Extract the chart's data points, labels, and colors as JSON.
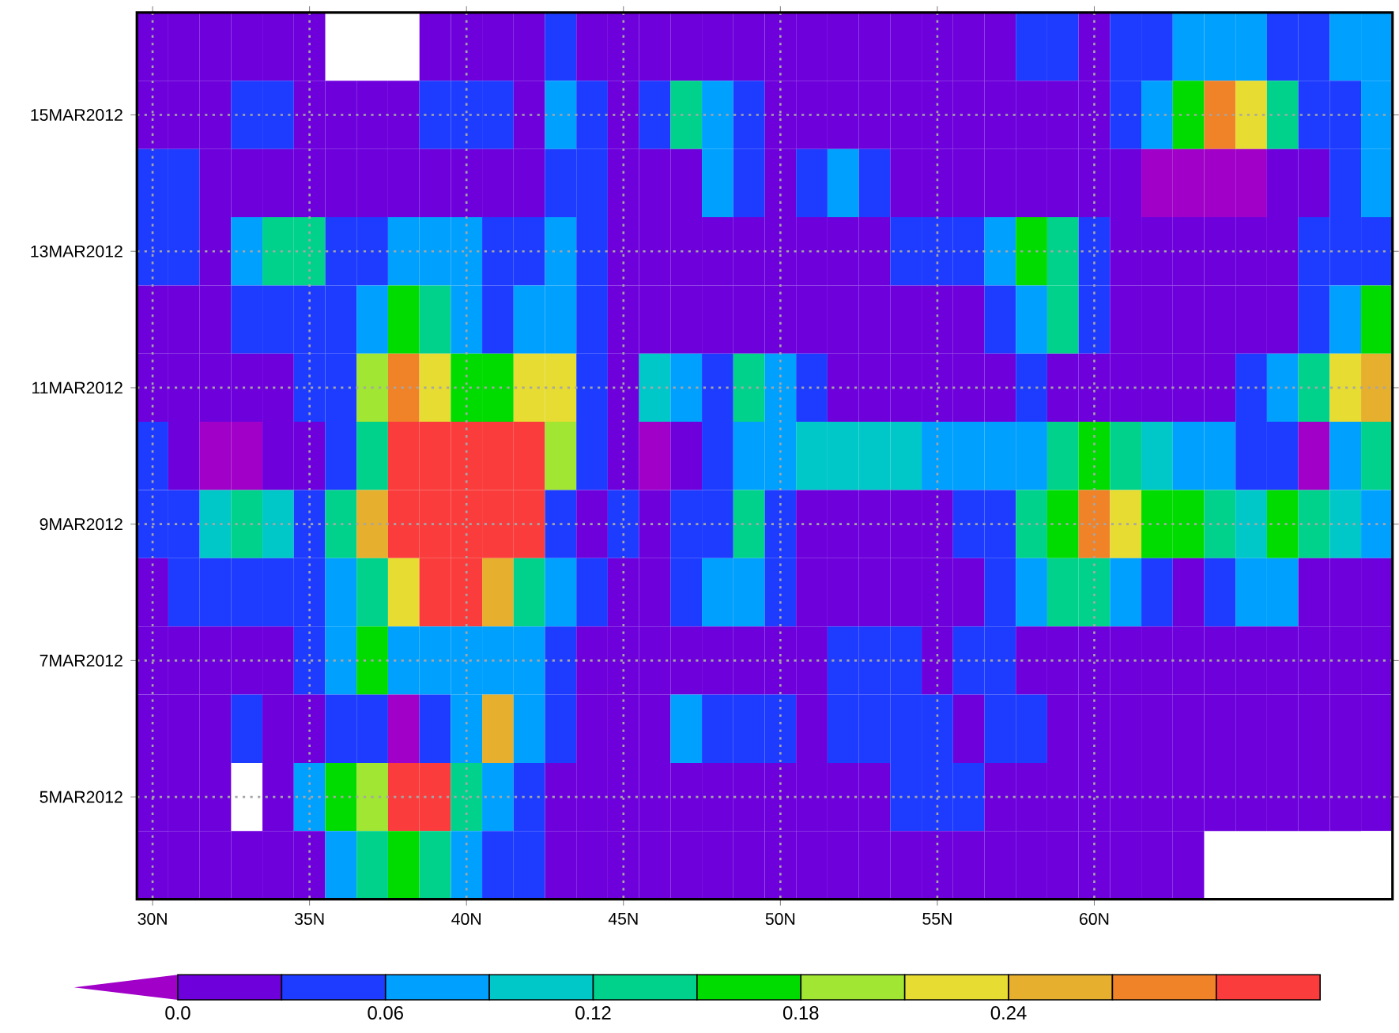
{
  "chart_data": {
    "type": "heatmap",
    "categories": [
      "30N",
      null,
      null,
      null,
      null,
      "35N",
      null,
      null,
      null,
      null,
      "40N",
      null,
      null,
      null,
      null,
      "45N",
      null,
      null,
      null,
      null,
      "50N",
      null,
      null,
      null,
      null,
      "55N",
      null,
      null,
      null,
      null,
      "60N",
      null,
      null,
      null,
      null,
      null,
      null,
      null,
      null,
      null
    ],
    "y_categories": [
      null,
      "15MAR2012",
      null,
      "13MAR2012",
      null,
      "11MAR2012",
      null,
      "9MAR2012",
      null,
      "7MAR2012",
      null,
      "5MAR2012",
      null
    ],
    "cells": [
      [
        0.015,
        0.015,
        0.015,
        0.015,
        0.015,
        0.015,
        null,
        null,
        null,
        0.015,
        0.015,
        0.015,
        0.015,
        0.045,
        0.015,
        0.015,
        0.015,
        0.015,
        0.015,
        0.015,
        0.015,
        0.015,
        0.015,
        0.015,
        0.015,
        0.015,
        0.015,
        0.015,
        0.045,
        0.045,
        0.015,
        0.045,
        0.045,
        0.075,
        0.075,
        0.075,
        0.045,
        0.045,
        0.075,
        0.075
      ],
      [
        0.015,
        0.015,
        0.015,
        0.045,
        0.045,
        0.015,
        0.015,
        0.015,
        0.015,
        0.045,
        0.045,
        0.045,
        0.015,
        0.075,
        0.045,
        0.015,
        0.045,
        0.135,
        0.075,
        0.045,
        0.015,
        0.015,
        0.015,
        0.015,
        0.015,
        0.015,
        0.015,
        0.015,
        0.015,
        0.015,
        0.015,
        0.045,
        0.075,
        0.165,
        0.285,
        0.225,
        0.135,
        0.045,
        0.045,
        0.075
      ],
      [
        0.045,
        0.045,
        0.015,
        0.015,
        0.015,
        0.015,
        0.015,
        0.015,
        0.015,
        0.015,
        0.015,
        0.015,
        0.015,
        0.045,
        0.045,
        0.015,
        0.015,
        0.015,
        0.075,
        0.045,
        0.015,
        0.045,
        0.075,
        0.045,
        0.015,
        0.015,
        0.015,
        0.015,
        0.015,
        0.015,
        0.015,
        0.015,
        -0.015,
        -0.015,
        -0.015,
        -0.015,
        0.015,
        0.015,
        0.045,
        0.075
      ],
      [
        0.045,
        0.045,
        0.015,
        0.075,
        0.135,
        0.135,
        0.045,
        0.045,
        0.075,
        0.075,
        0.075,
        0.045,
        0.045,
        0.075,
        0.045,
        0.015,
        0.015,
        0.015,
        0.015,
        0.015,
        0.015,
        0.015,
        0.015,
        0.015,
        0.045,
        0.045,
        0.045,
        0.075,
        0.165,
        0.135,
        0.045,
        0.015,
        0.015,
        0.015,
        0.015,
        0.015,
        0.015,
        0.045,
        0.045,
        0.045
      ],
      [
        0.015,
        0.015,
        0.015,
        0.045,
        0.045,
        0.045,
        0.045,
        0.075,
        0.165,
        0.135,
        0.075,
        0.045,
        0.075,
        0.075,
        0.045,
        0.015,
        0.015,
        0.015,
        0.015,
        0.015,
        0.015,
        0.015,
        0.015,
        0.015,
        0.015,
        0.015,
        0.015,
        0.045,
        0.075,
        0.135,
        0.045,
        0.015,
        0.015,
        0.015,
        0.015,
        0.015,
        0.015,
        0.045,
        0.075,
        0.165
      ],
      [
        0.015,
        0.015,
        0.015,
        0.015,
        0.015,
        0.045,
        0.045,
        0.195,
        0.285,
        0.225,
        0.165,
        0.165,
        0.225,
        0.225,
        0.045,
        0.015,
        0.105,
        0.075,
        0.045,
        0.135,
        0.075,
        0.045,
        0.015,
        0.015,
        0.015,
        0.015,
        0.015,
        0.015,
        0.045,
        0.015,
        0.015,
        0.015,
        0.015,
        0.015,
        0.015,
        0.045,
        0.075,
        0.135,
        0.225,
        0.255
      ],
      [
        0.045,
        0.015,
        -0.015,
        -0.015,
        0.015,
        0.015,
        0.045,
        0.135,
        0.315,
        0.315,
        0.315,
        0.315,
        0.315,
        0.195,
        0.045,
        0.015,
        -0.015,
        0.015,
        0.045,
        0.075,
        0.075,
        0.105,
        0.105,
        0.105,
        0.105,
        0.075,
        0.075,
        0.075,
        0.075,
        0.135,
        0.165,
        0.135,
        0.105,
        0.075,
        0.075,
        0.045,
        0.045,
        -0.015,
        0.075,
        0.135
      ],
      [
        0.045,
        0.045,
        0.105,
        0.135,
        0.105,
        0.045,
        0.135,
        0.255,
        0.315,
        0.315,
        0.315,
        0.315,
        0.315,
        0.045,
        0.015,
        0.045,
        0.015,
        0.045,
        0.045,
        0.135,
        0.045,
        0.015,
        0.015,
        0.015,
        0.015,
        0.015,
        0.045,
        0.045,
        0.135,
        0.165,
        0.285,
        0.225,
        0.165,
        0.165,
        0.135,
        0.105,
        0.165,
        0.135,
        0.105,
        0.075
      ],
      [
        0.015,
        0.045,
        0.045,
        0.045,
        0.045,
        0.045,
        0.075,
        0.135,
        0.225,
        0.315,
        0.315,
        0.255,
        0.135,
        0.075,
        0.045,
        0.015,
        0.015,
        0.045,
        0.075,
        0.075,
        0.045,
        0.015,
        0.015,
        0.015,
        0.015,
        0.015,
        0.015,
        0.045,
        0.075,
        0.135,
        0.135,
        0.075,
        0.045,
        0.015,
        0.045,
        0.075,
        0.075,
        0.015,
        0.015,
        0.015
      ],
      [
        0.015,
        0.015,
        0.015,
        0.015,
        0.015,
        0.045,
        0.075,
        0.165,
        0.075,
        0.075,
        0.075,
        0.075,
        0.075,
        0.045,
        0.015,
        0.015,
        0.015,
        0.015,
        0.015,
        0.015,
        0.015,
        0.015,
        0.045,
        0.045,
        0.045,
        0.015,
        0.045,
        0.045,
        0.015,
        0.015,
        0.015,
        0.015,
        0.015,
        0.015,
        0.015,
        0.015,
        0.015,
        0.015,
        0.015,
        0.015
      ],
      [
        0.015,
        0.015,
        0.015,
        0.045,
        0.015,
        0.015,
        0.045,
        0.045,
        -0.015,
        0.045,
        0.075,
        0.255,
        0.075,
        0.045,
        0.015,
        0.015,
        0.015,
        0.075,
        0.045,
        0.045,
        0.045,
        0.015,
        0.045,
        0.045,
        0.045,
        0.045,
        0.015,
        0.045,
        0.045,
        0.015,
        0.015,
        0.015,
        0.015,
        0.015,
        0.015,
        0.015,
        0.015,
        0.015,
        0.015,
        0.015
      ],
      [
        0.015,
        0.015,
        0.015,
        null,
        0.015,
        0.075,
        0.165,
        0.195,
        0.315,
        0.315,
        0.135,
        0.075,
        0.045,
        0.015,
        0.015,
        0.015,
        0.015,
        0.015,
        0.015,
        0.015,
        0.015,
        0.015,
        0.015,
        0.015,
        0.045,
        0.045,
        0.045,
        0.015,
        0.015,
        0.015,
        0.015,
        0.015,
        0.015,
        0.015,
        0.015,
        0.015,
        0.015,
        0.015,
        0.015,
        0.015
      ],
      [
        0.015,
        0.015,
        0.015,
        0.015,
        0.015,
        0.015,
        0.075,
        0.135,
        0.165,
        0.135,
        0.075,
        0.045,
        0.045,
        0.015,
        0.015,
        0.015,
        0.015,
        0.015,
        0.015,
        0.015,
        0.015,
        0.015,
        0.015,
        0.015,
        0.015,
        0.015,
        0.015,
        0.015,
        0.015,
        0.015,
        0.015,
        0.015,
        0.015,
        0.015,
        null,
        null,
        null,
        null,
        null,
        null
      ]
    ],
    "clim": [
      -0.03,
      0.33
    ],
    "cticks": [
      {
        "value": 0,
        "label": "0.0"
      },
      0.06,
      0.12,
      0.18,
      0.24
    ],
    "colors": [
      "#a000c8",
      "#6e00dc",
      "#1e3cff",
      "#00a0ff",
      "#00c8c8",
      "#00d28c",
      "#00dc00",
      "#a0e632",
      "#e6dc32",
      "#e6af2d",
      "#f08228",
      "#fa3c3c"
    ],
    "grid": true
  }
}
